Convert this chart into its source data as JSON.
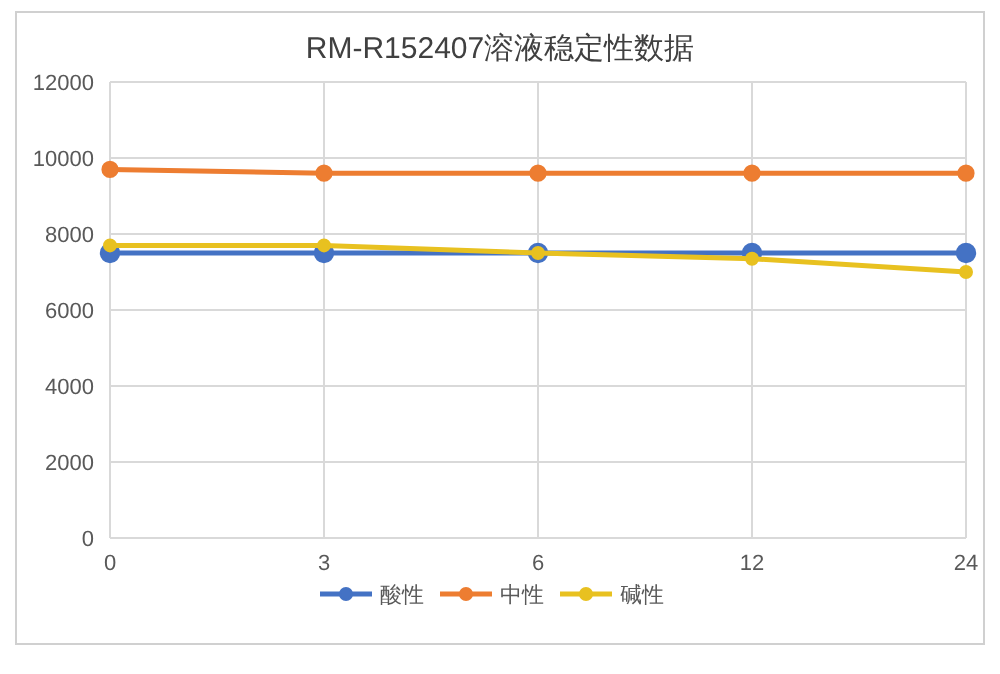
{
  "chart_data": {
    "type": "line",
    "title": "RM-R152407溶液稳定性数据",
    "categories": [
      "0",
      "3",
      "6",
      "12",
      "24"
    ],
    "series": [
      {
        "name": "酸性",
        "color": "#4472c4",
        "values": [
          7500,
          7500,
          7500,
          7500,
          7500
        ]
      },
      {
        "name": "中性",
        "color": "#ed7d31",
        "values": [
          9700,
          9600,
          9600,
          9600,
          9600
        ]
      },
      {
        "name": "碱性",
        "color": "#e8c120",
        "values": [
          7700,
          7700,
          7500,
          7350,
          7000
        ]
      }
    ],
    "ylim": [
      0,
      12000
    ],
    "yticks": [
      0,
      2000,
      4000,
      6000,
      8000,
      10000,
      12000
    ],
    "grid": true,
    "legend": "bottom",
    "marker": "circle",
    "line_style": "solid"
  }
}
